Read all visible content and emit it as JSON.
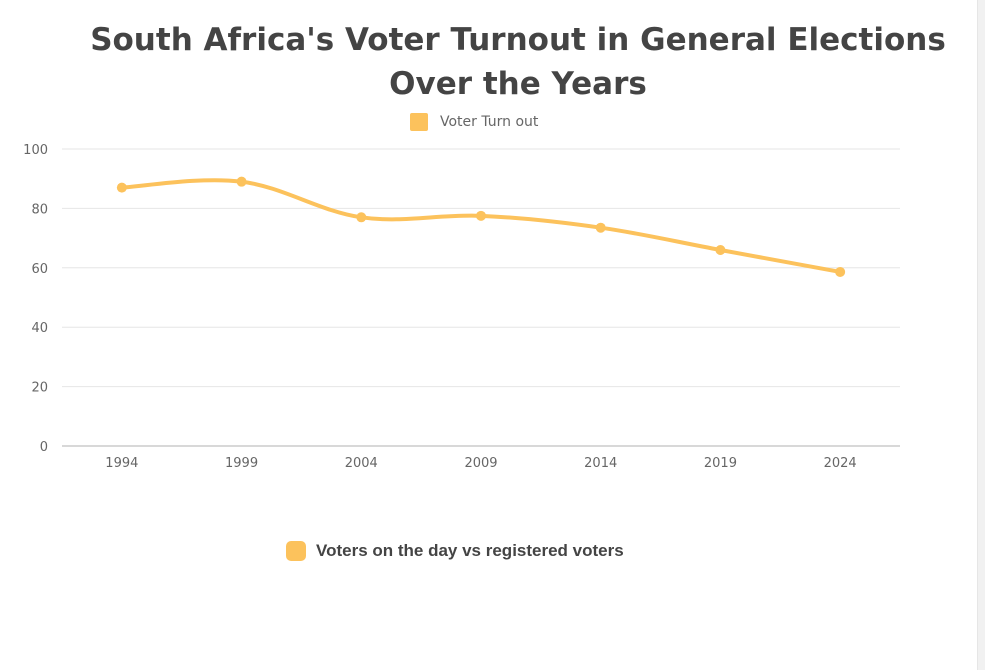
{
  "colors": {
    "series": "#fcc25c",
    "grid": "#e6e6e6",
    "axis": "#b0b0b0",
    "text": "#666666",
    "title": "#444444"
  },
  "legend": {
    "top_label": "Voter Turn out",
    "bottom_label": "Voters on the day vs registered voters"
  },
  "chart_data": {
    "type": "line",
    "title": "South Africa's Voter Turnout in General Elections Over the Years",
    "categories": [
      "1994",
      "1999",
      "2004",
      "2009",
      "2014",
      "2019",
      "2024"
    ],
    "series": [
      {
        "name": "Voter Turn out",
        "values": [
          87,
          89,
          77,
          77.5,
          73.5,
          66,
          58.6
        ]
      }
    ],
    "ylim": [
      0,
      100
    ],
    "yticks": [
      0,
      20,
      40,
      60,
      80,
      100
    ],
    "xlabel": "",
    "ylabel": "",
    "grid": true,
    "legend_position": "top-center"
  }
}
